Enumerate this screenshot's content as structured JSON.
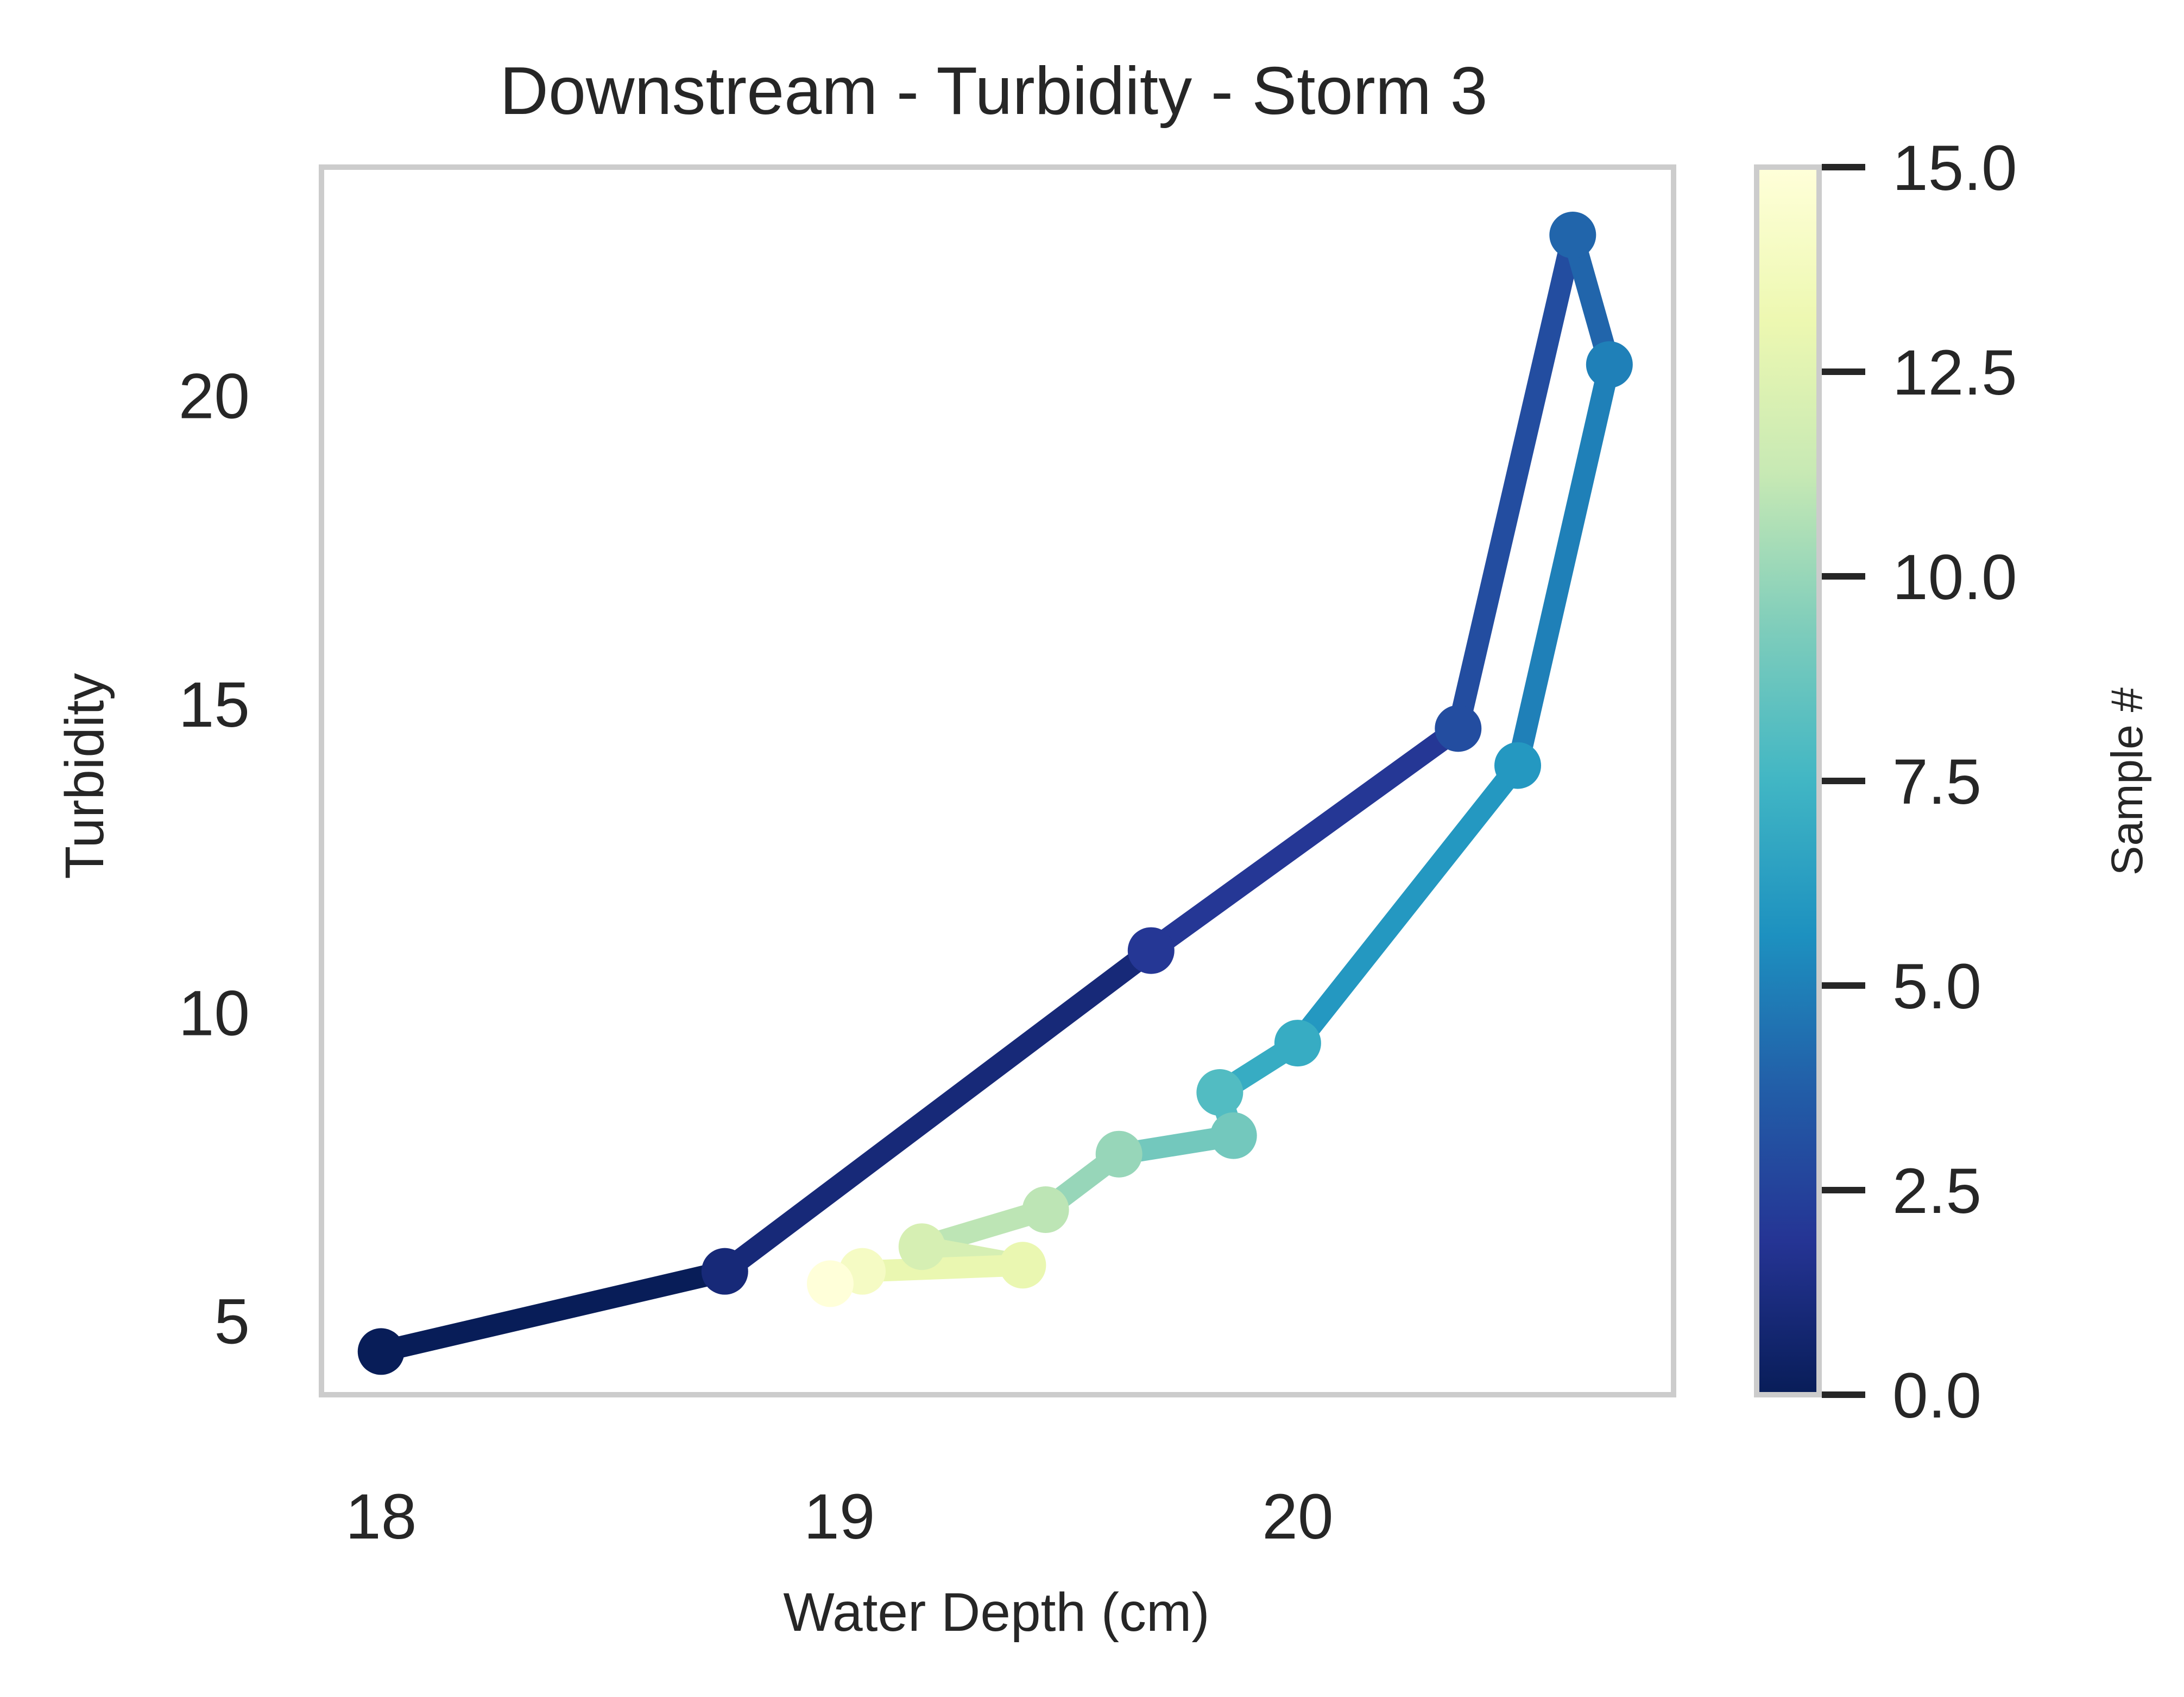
{
  "chart_data": {
    "type": "line",
    "title": "Downstream - Turbidity - Storm 3",
    "xlabel": "Water Depth (cm)",
    "ylabel": "Turbidity",
    "xlim": [
      17.87,
      20.82
    ],
    "ylim": [
      3.8,
      23.7
    ],
    "xticks": [
      18,
      19,
      20
    ],
    "yticks": [
      5,
      10,
      15,
      20
    ],
    "xtick_labels": [
      "18",
      "19",
      "20"
    ],
    "ytick_labels": [
      "5",
      "10",
      "15",
      "20"
    ],
    "grid": false,
    "series": [
      {
        "x": [
          18.0,
          18.75,
          19.68,
          20.35,
          20.6,
          20.68,
          20.48,
          20.0,
          19.83,
          19.86,
          19.61,
          19.45,
          19.18,
          19.4,
          19.05,
          18.98
        ],
        "y": [
          4.5,
          5.8,
          11.0,
          14.6,
          22.6,
          20.5,
          14.0,
          9.5,
          8.7,
          8.0,
          7.7,
          6.8,
          6.2,
          5.9,
          5.8,
          5.6
        ],
        "color_by": "sample_index"
      }
    ],
    "colorbar": {
      "label": "Sample #",
      "colormap": "YlGnBu_r",
      "range": [
        0.0,
        15.0
      ],
      "ticks": [
        0.0,
        2.5,
        5.0,
        7.5,
        10.0,
        12.5,
        15.0
      ],
      "tick_labels": [
        "0.0",
        "2.5",
        "5.0",
        "7.5",
        "10.0",
        "12.5",
        "15.0"
      ]
    }
  },
  "colors": {
    "background": "#ffffff",
    "frame": "#cccccc",
    "text": "#262626"
  }
}
